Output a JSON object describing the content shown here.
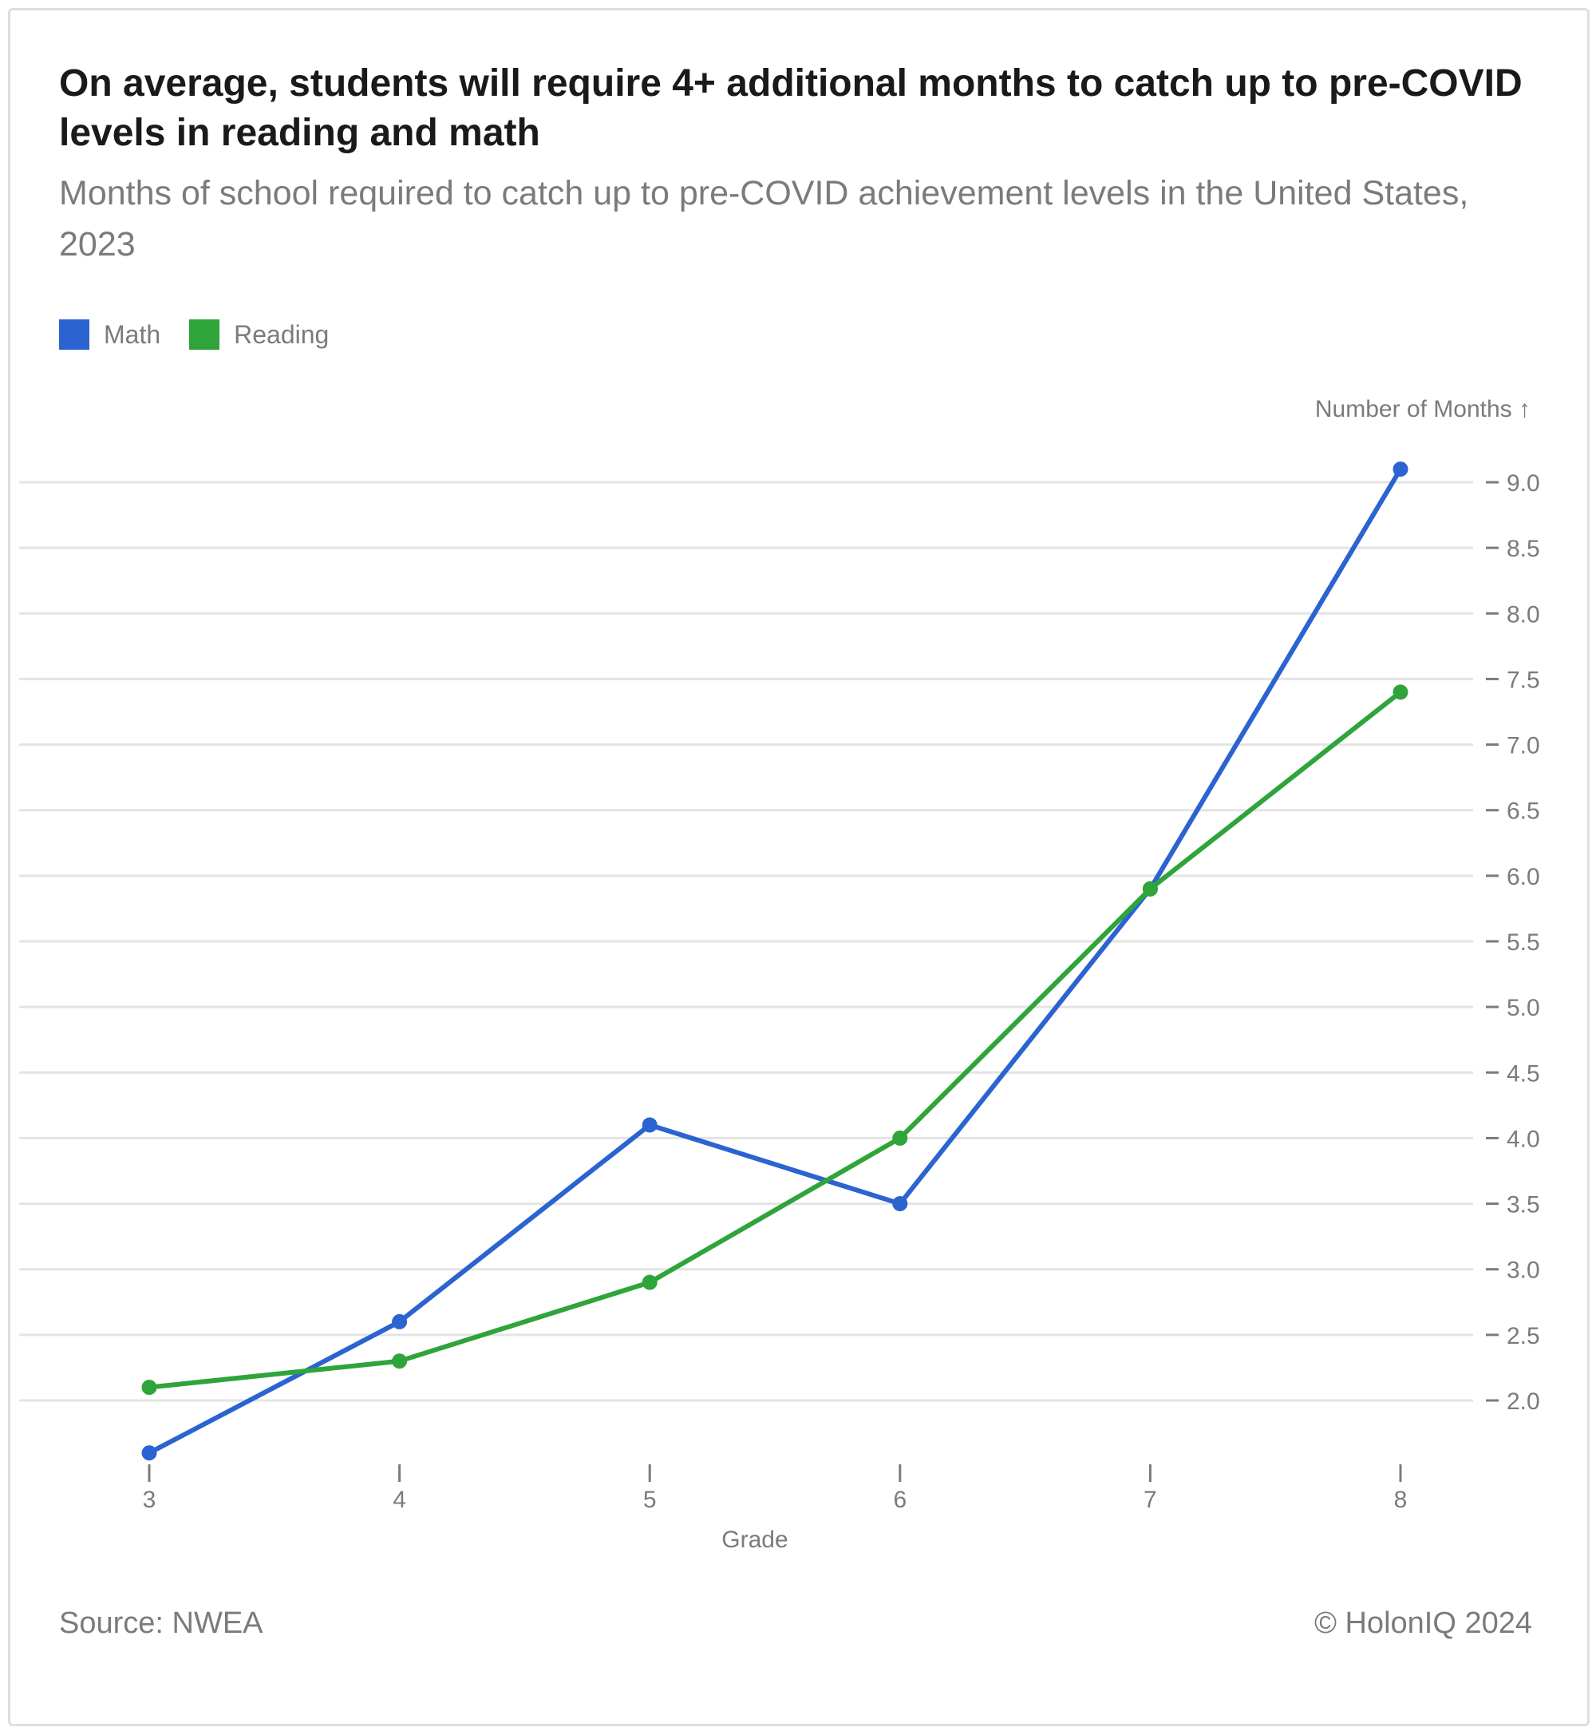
{
  "header": {
    "title": "On average, students will require 4+ additional months to catch up to pre-COVID levels in reading and math",
    "subtitle": "Months of school required to catch up to pre-COVID achievement levels in the United States, 2023"
  },
  "legend": {
    "items": [
      {
        "label": "Math",
        "color": "#2b63d1"
      },
      {
        "label": "Reading",
        "color": "#2ea43a"
      }
    ]
  },
  "footer": {
    "source": "Source: NWEA",
    "copyright": "© HolonIQ 2024"
  },
  "chart_data": {
    "type": "line",
    "x": [
      3,
      4,
      5,
      6,
      7,
      8
    ],
    "series": [
      {
        "name": "Math",
        "color": "#2b63d1",
        "values": [
          1.6,
          2.6,
          4.1,
          3.5,
          5.9,
          9.1
        ]
      },
      {
        "name": "Reading",
        "color": "#2ea43a",
        "values": [
          2.1,
          2.3,
          2.9,
          4.0,
          5.9,
          7.4
        ]
      }
    ],
    "xlabel": "Grade",
    "ylabel": "Number of Months ↑",
    "ylim": [
      1.6,
      9.1
    ],
    "yticks": [
      "2.0",
      "2.5",
      "3.0",
      "3.5",
      "4.0",
      "4.5",
      "5.0",
      "5.5",
      "6.0",
      "6.5",
      "7.0",
      "7.5",
      "8.0",
      "8.5",
      "9.0"
    ],
    "xticks": [
      "3",
      "4",
      "5",
      "6",
      "7",
      "8"
    ],
    "grid": true,
    "y_axis_side": "right",
    "legend_position": "top-left"
  }
}
